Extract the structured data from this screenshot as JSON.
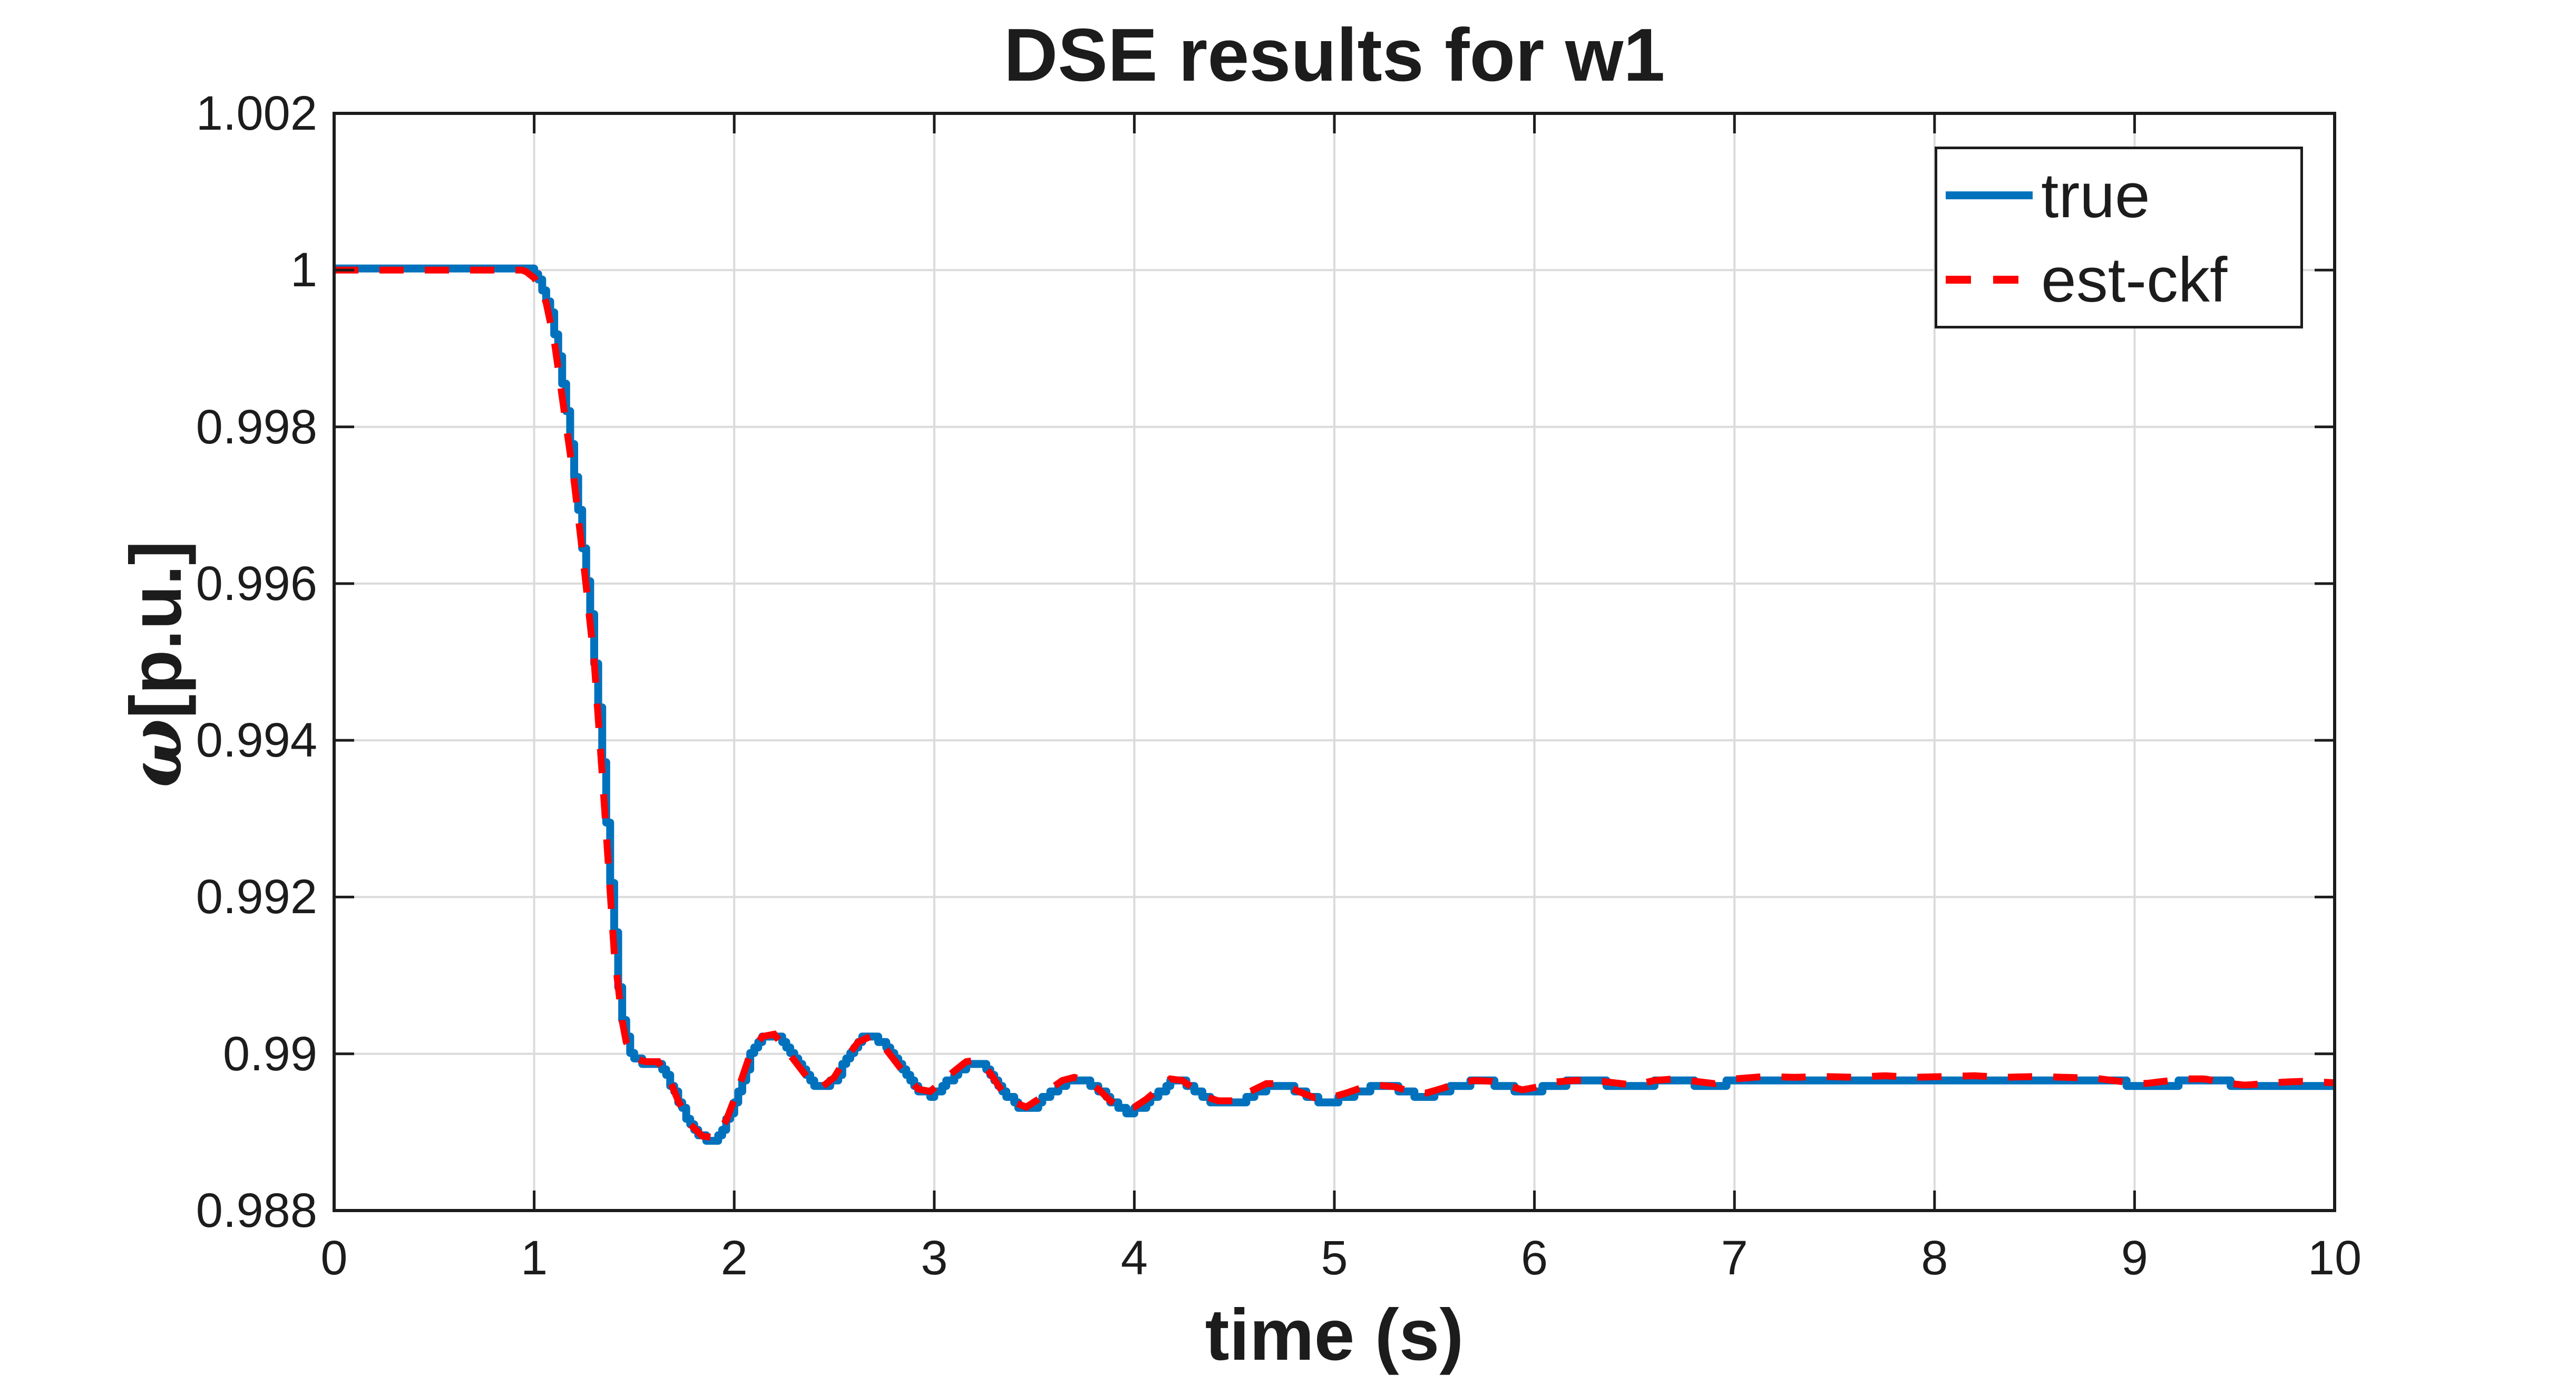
{
  "title": "DSE results for w1",
  "axes": {
    "x": {
      "label": "time (s)",
      "min": 0,
      "max": 10,
      "tick_values": [
        0,
        1,
        2,
        3,
        4,
        5,
        6,
        7,
        8,
        9,
        10
      ],
      "tick_labels": [
        "0",
        "1",
        "2",
        "3",
        "4",
        "5",
        "6",
        "7",
        "8",
        "9",
        "10"
      ]
    },
    "y": {
      "label_symbol": "ω",
      "label_unit": "[p.u.]",
      "min": 0.988,
      "max": 1.002,
      "tick_values": [
        0.988,
        0.99,
        0.992,
        0.994,
        0.996,
        0.998,
        1.0,
        1.002
      ],
      "tick_labels": [
        "0.988",
        "0.99",
        "0.992",
        "0.994",
        "0.996",
        "0.998",
        "1",
        "1.002"
      ]
    }
  },
  "legend": {
    "position": "top-right",
    "items": [
      {
        "label": "true",
        "color": "#0072BD",
        "style": "solid"
      },
      {
        "label": "est-ckf",
        "color": "#FF0000",
        "style": "dashed"
      }
    ]
  },
  "colors": {
    "true_line": "#0072BD",
    "est_line": "#FF0000",
    "grid": "#DBDBDB",
    "axis": "#1c1c1c",
    "background": "#FFFFFF"
  },
  "chart_data": {
    "type": "line",
    "title": "DSE results for w1",
    "xlabel": "time (s)",
    "ylabel": "ω[p.u.]",
    "xlim": [
      0,
      10
    ],
    "ylim": [
      0.988,
      1.002
    ],
    "grid": true,
    "legend_position": "top-right",
    "series": [
      {
        "name": "true",
        "color": "#0072BD",
        "style": "solid",
        "render": "staircase",
        "quantization": 7e-05,
        "points": [
          [
            0,
            1.0
          ],
          [
            0.5,
            1.0
          ],
          [
            0.98,
            1.0
          ],
          [
            1.03,
            0.99985
          ],
          [
            1.08,
            0.99945
          ],
          [
            1.13,
            0.99875
          ],
          [
            1.18,
            0.9978
          ],
          [
            1.23,
            0.9967
          ],
          [
            1.28,
            0.9956
          ],
          [
            1.33,
            0.9941
          ],
          [
            1.38,
            0.9922
          ],
          [
            1.43,
            0.99055
          ],
          [
            1.48,
            0.99
          ],
          [
            1.53,
            0.9899
          ],
          [
            1.62,
            0.9899
          ],
          [
            1.68,
            0.9896
          ],
          [
            1.73,
            0.98935
          ],
          [
            1.79,
            0.98905
          ],
          [
            1.85,
            0.98892
          ],
          [
            1.91,
            0.98889
          ],
          [
            1.97,
            0.9892
          ],
          [
            2.03,
            0.9896
          ],
          [
            2.09,
            0.99005
          ],
          [
            2.15,
            0.99022
          ],
          [
            2.21,
            0.99025
          ],
          [
            2.27,
            0.99002
          ],
          [
            2.33,
            0.9898
          ],
          [
            2.39,
            0.9896
          ],
          [
            2.45,
            0.98955
          ],
          [
            2.51,
            0.98972
          ],
          [
            2.57,
            0.98998
          ],
          [
            2.63,
            0.99018
          ],
          [
            2.69,
            0.99022
          ],
          [
            2.75,
            0.9901
          ],
          [
            2.81,
            0.98988
          ],
          [
            2.87,
            0.98968
          ],
          [
            2.93,
            0.9895
          ],
          [
            2.99,
            0.98948
          ],
          [
            3.05,
            0.98962
          ],
          [
            3.11,
            0.98976
          ],
          [
            3.17,
            0.98988
          ],
          [
            3.23,
            0.9899
          ],
          [
            3.29,
            0.98972
          ],
          [
            3.35,
            0.9895
          ],
          [
            3.41,
            0.98933
          ],
          [
            3.47,
            0.98928
          ],
          [
            3.53,
            0.9894
          ],
          [
            3.59,
            0.98953
          ],
          [
            3.65,
            0.98964
          ],
          [
            3.71,
            0.98968
          ],
          [
            3.77,
            0.98964
          ],
          [
            3.83,
            0.98952
          ],
          [
            3.89,
            0.98937
          ],
          [
            3.95,
            0.98926
          ],
          [
            4.01,
            0.98928
          ],
          [
            4.07,
            0.9894
          ],
          [
            4.13,
            0.98953
          ],
          [
            4.19,
            0.98966
          ],
          [
            4.25,
            0.98964
          ],
          [
            4.31,
            0.98952
          ],
          [
            4.37,
            0.98942
          ],
          [
            4.43,
            0.98936
          ],
          [
            4.52,
            0.98936
          ],
          [
            4.6,
            0.9895
          ],
          [
            4.68,
            0.9896
          ],
          [
            4.76,
            0.9896
          ],
          [
            4.84,
            0.9895
          ],
          [
            4.92,
            0.9894
          ],
          [
            5.0,
            0.9894
          ],
          [
            5.08,
            0.98948
          ],
          [
            5.16,
            0.98955
          ],
          [
            5.24,
            0.98958
          ],
          [
            5.32,
            0.98955
          ],
          [
            5.4,
            0.98948
          ],
          [
            5.48,
            0.98947
          ],
          [
            5.56,
            0.98954
          ],
          [
            5.64,
            0.98961
          ],
          [
            5.72,
            0.98964
          ],
          [
            5.8,
            0.98962
          ],
          [
            5.88,
            0.98956
          ],
          [
            5.96,
            0.98951
          ],
          [
            6.04,
            0.98956
          ],
          [
            6.12,
            0.98962
          ],
          [
            6.25,
            0.98964
          ],
          [
            6.38,
            0.98962
          ],
          [
            6.5,
            0.98958
          ],
          [
            6.62,
            0.98964
          ],
          [
            6.75,
            0.98966
          ],
          [
            6.85,
            0.98958
          ],
          [
            6.95,
            0.98962
          ],
          [
            7.05,
            0.98968
          ],
          [
            7.3,
            0.98968
          ],
          [
            7.6,
            0.98968
          ],
          [
            7.9,
            0.98968
          ],
          [
            8.2,
            0.98968
          ],
          [
            8.5,
            0.98968
          ],
          [
            8.8,
            0.98968
          ],
          [
            8.92,
            0.98966
          ],
          [
            8.98,
            0.98958
          ],
          [
            9.1,
            0.98958
          ],
          [
            9.2,
            0.98962
          ],
          [
            9.28,
            0.98968
          ],
          [
            9.42,
            0.98968
          ],
          [
            9.5,
            0.98959
          ],
          [
            9.7,
            0.98958
          ],
          [
            9.9,
            0.98958
          ],
          [
            10,
            0.98958
          ]
        ]
      },
      {
        "name": "est-ckf",
        "color": "#FF0000",
        "style": "dashed",
        "render": "smooth",
        "points": [
          [
            0,
            1.0
          ],
          [
            0.5,
            1.0
          ],
          [
            0.95,
            1.0
          ],
          [
            1.0,
            0.9999
          ],
          [
            1.05,
            0.9997
          ],
          [
            1.1,
            0.9991
          ],
          [
            1.15,
            0.9982
          ],
          [
            1.2,
            0.9973
          ],
          [
            1.25,
            0.9962
          ],
          [
            1.3,
            0.995
          ],
          [
            1.35,
            0.9932
          ],
          [
            1.4,
            0.9913
          ],
          [
            1.45,
            0.9902
          ],
          [
            1.5,
            0.98995
          ],
          [
            1.55,
            0.9899
          ],
          [
            1.62,
            0.9899
          ],
          [
            1.68,
            0.98965
          ],
          [
            1.72,
            0.9894
          ],
          [
            1.78,
            0.9891
          ],
          [
            1.84,
            0.98895
          ],
          [
            1.9,
            0.98893
          ],
          [
            1.96,
            0.98915
          ],
          [
            2.02,
            0.98955
          ],
          [
            2.08,
            0.99
          ],
          [
            2.14,
            0.99022
          ],
          [
            2.2,
            0.99025
          ],
          [
            2.26,
            0.99005
          ],
          [
            2.32,
            0.98985
          ],
          [
            2.38,
            0.98965
          ],
          [
            2.44,
            0.98958
          ],
          [
            2.5,
            0.9897
          ],
          [
            2.56,
            0.98995
          ],
          [
            2.62,
            0.99015
          ],
          [
            2.68,
            0.99022
          ],
          [
            2.74,
            0.99012
          ],
          [
            2.8,
            0.98992
          ],
          [
            2.86,
            0.98972
          ],
          [
            2.92,
            0.98955
          ],
          [
            2.98,
            0.98952
          ],
          [
            3.04,
            0.98965
          ],
          [
            3.1,
            0.98978
          ],
          [
            3.16,
            0.9899
          ],
          [
            3.22,
            0.98992
          ],
          [
            3.28,
            0.98975
          ],
          [
            3.34,
            0.98952
          ],
          [
            3.4,
            0.98938
          ],
          [
            3.46,
            0.98932
          ],
          [
            3.52,
            0.98942
          ],
          [
            3.58,
            0.98955
          ],
          [
            3.64,
            0.98966
          ],
          [
            3.7,
            0.9897
          ],
          [
            3.76,
            0.98966
          ],
          [
            3.82,
            0.98955
          ],
          [
            3.88,
            0.9894
          ],
          [
            3.94,
            0.9893
          ],
          [
            4.0,
            0.98932
          ],
          [
            4.06,
            0.98942
          ],
          [
            4.12,
            0.98955
          ],
          [
            4.18,
            0.98968
          ],
          [
            4.24,
            0.98966
          ],
          [
            4.3,
            0.98955
          ],
          [
            4.36,
            0.98945
          ],
          [
            4.42,
            0.9894
          ],
          [
            4.5,
            0.9894
          ],
          [
            4.58,
            0.98952
          ],
          [
            4.66,
            0.98962
          ],
          [
            4.74,
            0.98962
          ],
          [
            4.82,
            0.98952
          ],
          [
            4.9,
            0.98944
          ],
          [
            4.98,
            0.98944
          ],
          [
            5.06,
            0.9895
          ],
          [
            5.14,
            0.98957
          ],
          [
            5.22,
            0.9896
          ],
          [
            5.3,
            0.98958
          ],
          [
            5.38,
            0.98952
          ],
          [
            5.46,
            0.9895
          ],
          [
            5.54,
            0.98956
          ],
          [
            5.62,
            0.98963
          ],
          [
            5.7,
            0.98966
          ],
          [
            5.78,
            0.98965
          ],
          [
            5.86,
            0.9896
          ],
          [
            5.94,
            0.98954
          ],
          [
            6.02,
            0.98958
          ],
          [
            6.1,
            0.98964
          ],
          [
            6.2,
            0.98966
          ],
          [
            6.3,
            0.98966
          ],
          [
            6.4,
            0.98963
          ],
          [
            6.5,
            0.9896
          ],
          [
            6.6,
            0.98966
          ],
          [
            6.7,
            0.98968
          ],
          [
            6.8,
            0.98965
          ],
          [
            6.9,
            0.98962
          ],
          [
            7.0,
            0.98968
          ],
          [
            7.15,
            0.98971
          ],
          [
            7.3,
            0.9897
          ],
          [
            7.45,
            0.98971
          ],
          [
            7.6,
            0.9897
          ],
          [
            7.75,
            0.98972
          ],
          [
            7.9,
            0.9897
          ],
          [
            8.05,
            0.98971
          ],
          [
            8.2,
            0.98972
          ],
          [
            8.35,
            0.9897
          ],
          [
            8.5,
            0.98971
          ],
          [
            8.65,
            0.9897
          ],
          [
            8.8,
            0.98969
          ],
          [
            8.95,
            0.98964
          ],
          [
            9.05,
            0.98962
          ],
          [
            9.15,
            0.98965
          ],
          [
            9.25,
            0.98968
          ],
          [
            9.35,
            0.98968
          ],
          [
            9.45,
            0.98963
          ],
          [
            9.55,
            0.9896
          ],
          [
            9.65,
            0.98962
          ],
          [
            9.75,
            0.98964
          ],
          [
            9.85,
            0.98965
          ],
          [
            10,
            0.98963
          ]
        ]
      }
    ]
  }
}
